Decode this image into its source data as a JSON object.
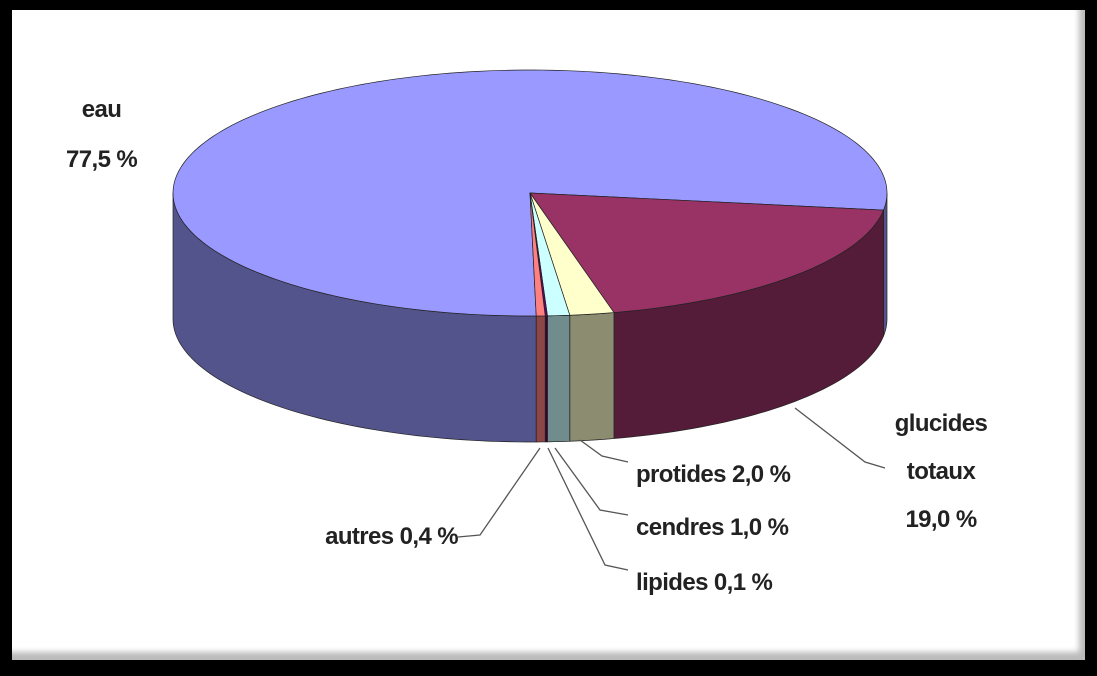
{
  "chart_data": {
    "type": "pie3d",
    "categories": [
      "eau",
      "glucides totaux",
      "protides",
      "cendres",
      "lipides",
      "autres"
    ],
    "values": [
      77.5,
      19.0,
      2.0,
      1.0,
      0.1,
      0.4
    ],
    "value_labels": [
      "77,5 %",
      "19,0 %",
      "2,0 %",
      "1,0 %",
      "0,1 %",
      "0,4 %"
    ],
    "colors": [
      "#9999ff",
      "#993366",
      "#ffffcc",
      "#ccffff",
      "#660066",
      "#ff8080"
    ]
  }
}
